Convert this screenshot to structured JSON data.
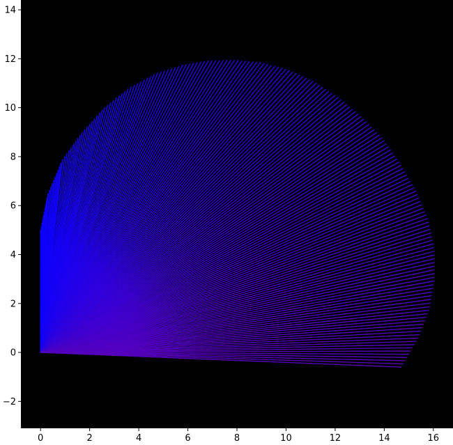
{
  "chart_data": {
    "type": "line",
    "title": "",
    "xlabel": "",
    "ylabel": "",
    "xlim": [
      -0.8,
      16.8
    ],
    "ylim": [
      -3.1,
      14.4
    ],
    "x_ticks": [
      0,
      2,
      4,
      6,
      8,
      10,
      12,
      14,
      16
    ],
    "x_tick_labels": [
      "0",
      "2",
      "4",
      "6",
      "8",
      "10",
      "12",
      "14",
      "16"
    ],
    "y_ticks": [
      -2,
      0,
      2,
      4,
      6,
      8,
      10,
      12,
      14
    ],
    "y_tick_labels": [
      "−2",
      "0",
      "2",
      "4",
      "6",
      "8",
      "10",
      "12",
      "14"
    ],
    "grid": false,
    "background": "#000000",
    "fan": {
      "description": "radial fan of line segments from a common origin",
      "origin": [
        0,
        0
      ],
      "count": 190,
      "start_point": [
        0,
        5.0
      ],
      "end_point": [
        14.7,
        -0.6
      ],
      "path_description": "outer endpoints sweep from (0,5) up to (7.9,11.95), right to (16.05,4.2), down to (14.7,-0.6)",
      "outline": [
        [
          0.0,
          5.0
        ],
        [
          0.3,
          6.5
        ],
        [
          0.9,
          7.9
        ],
        [
          1.7,
          9.0
        ],
        [
          2.6,
          10.0
        ],
        [
          3.6,
          10.8
        ],
        [
          4.7,
          11.4
        ],
        [
          5.8,
          11.75
        ],
        [
          6.8,
          11.92
        ],
        [
          7.9,
          11.95
        ],
        [
          9.0,
          11.85
        ],
        [
          10.1,
          11.55
        ],
        [
          11.1,
          11.1
        ],
        [
          12.1,
          10.45
        ],
        [
          13.0,
          9.7
        ],
        [
          13.9,
          8.8
        ],
        [
          14.6,
          7.8
        ],
        [
          15.3,
          6.6
        ],
        [
          15.8,
          5.4
        ],
        [
          16.05,
          4.2
        ],
        [
          16.05,
          3.0
        ],
        [
          15.85,
          1.8
        ],
        [
          15.4,
          0.6
        ],
        [
          14.7,
          -0.6
        ]
      ],
      "color_start": "#0a00ff",
      "color_end": "#5500bb"
    }
  }
}
